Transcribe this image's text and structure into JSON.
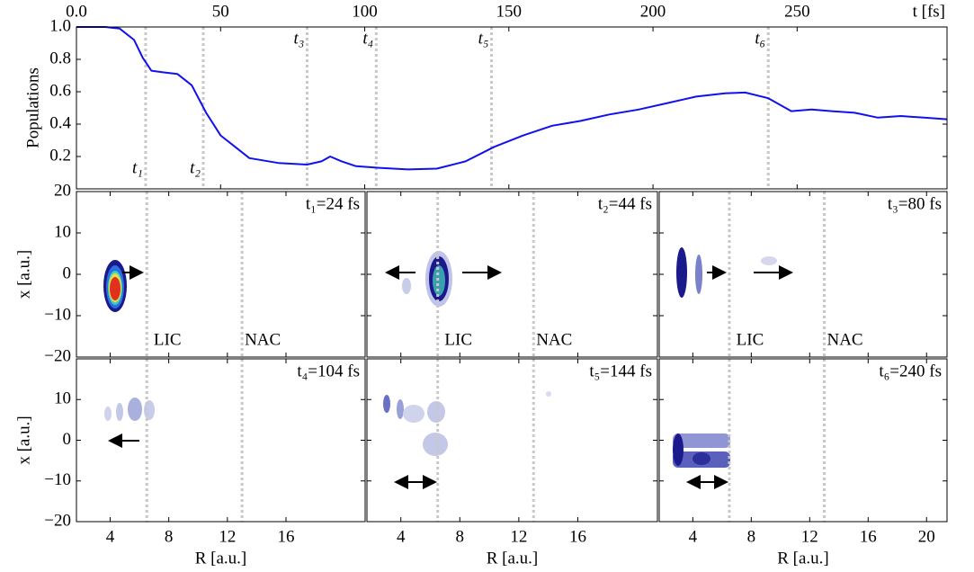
{
  "chart_data": [
    {
      "type": "line",
      "xlabel": "t [fs]",
      "ylabel": "Populations",
      "color": "#1111ee",
      "x": [
        0,
        10,
        15,
        20,
        23,
        26,
        30,
        35,
        40,
        45,
        50,
        55,
        60,
        70,
        80,
        85,
        88,
        92,
        97,
        105,
        115,
        125,
        135,
        145,
        155,
        165,
        175,
        185,
        195,
        205,
        215,
        225,
        232,
        240,
        248,
        255,
        262,
        270,
        278,
        286,
        294,
        302
      ],
      "values": [
        1.0,
        1.0,
        0.99,
        0.92,
        0.81,
        0.73,
        0.72,
        0.71,
        0.64,
        0.47,
        0.33,
        0.26,
        0.19,
        0.16,
        0.15,
        0.17,
        0.2,
        0.17,
        0.14,
        0.13,
        0.12,
        0.125,
        0.17,
        0.26,
        0.33,
        0.39,
        0.42,
        0.46,
        0.49,
        0.53,
        0.57,
        0.59,
        0.595,
        0.56,
        0.48,
        0.49,
        0.48,
        0.47,
        0.44,
        0.45,
        0.44,
        0.43
      ],
      "xlim": [
        0,
        302
      ],
      "xticks": [
        {
          "value": 0,
          "label": "0.0"
        },
        50,
        100,
        150,
        200,
        250
      ],
      "ylim": [
        0,
        1.0
      ],
      "yticks": [
        0.2,
        0.4,
        0.6,
        0.8,
        {
          "value": 1.0,
          "label": "1.0"
        }
      ],
      "markers": [
        {
          "label": "t₁",
          "x": 24
        },
        {
          "label": "t₂",
          "x": 44
        },
        {
          "label": "t₃",
          "x": 80
        },
        {
          "label": "t₄",
          "x": 104
        },
        {
          "label": "t₅",
          "x": 144
        },
        {
          "label": "t₆",
          "x": 240
        }
      ]
    },
    {
      "type": "heatmap",
      "title": "t₁=24 fs",
      "ylabel": "x [a.u.]",
      "xlim": [
        1.7,
        21.4
      ],
      "xticks": [
        4,
        8,
        12,
        16
      ],
      "ylim": [
        -20,
        20
      ],
      "yticks": [
        {
          "value": 20,
          "label": "20"
        },
        10,
        0,
        {
          "value": -10,
          "label": "−10"
        },
        {
          "value": -20,
          "label": "−20"
        }
      ],
      "vlines": [
        6.5,
        13
      ],
      "vline_labels": [
        "LIC",
        "NAC"
      ]
    },
    {
      "type": "heatmap",
      "title": "t₂=44 fs",
      "xlim": [
        1.7,
        21.4
      ],
      "xticks": [
        4,
        8,
        12,
        16
      ],
      "ylim": [
        -20,
        20
      ],
      "yticks": [
        20,
        10,
        0,
        -10,
        -20
      ],
      "vlines": [
        6.5,
        13
      ],
      "vline_labels": [
        "LIC",
        "NAC"
      ]
    },
    {
      "type": "heatmap",
      "title": "t₃=80 fs",
      "xlim": [
        1.7,
        21.4
      ],
      "xticks": [
        4,
        8,
        12,
        16,
        20
      ],
      "ylim": [
        -20,
        20
      ],
      "yticks": [
        20,
        10,
        0,
        -10,
        -20
      ],
      "vlines": [
        6.5,
        13
      ],
      "vline_labels": [
        "LIC",
        "NAC"
      ]
    },
    {
      "type": "heatmap",
      "title": "t₄=104 fs",
      "ylabel": "x [a.u.]",
      "xlabel": "R [a.u.]",
      "xlim": [
        1.7,
        21.4
      ],
      "xticks": [
        4,
        8,
        12,
        16
      ],
      "ylim": [
        -20,
        20
      ],
      "yticks": [
        10,
        0,
        {
          "value": -10,
          "label": "−10"
        },
        {
          "value": -20,
          "label": "−20"
        }
      ],
      "vlines": [
        6.5,
        13
      ]
    },
    {
      "type": "heatmap",
      "title": "t₅=144 fs",
      "xlabel": "R [a.u.]",
      "xlim": [
        1.7,
        21.4
      ],
      "xticks": [
        4,
        8,
        12,
        16
      ],
      "ylim": [
        -20,
        20
      ],
      "yticks": [
        10,
        0,
        -10,
        -20
      ],
      "vlines": [
        6.5,
        13
      ]
    },
    {
      "type": "heatmap",
      "title": "t₆=240 fs",
      "xlabel": "R [a.u.]",
      "xlim": [
        1.7,
        21.4
      ],
      "xticks": [
        4,
        8,
        12,
        16,
        20
      ],
      "ylim": [
        -20,
        20
      ],
      "yticks": [
        10,
        0,
        -10,
        -20
      ],
      "vlines": [
        6.5,
        13
      ]
    }
  ]
}
